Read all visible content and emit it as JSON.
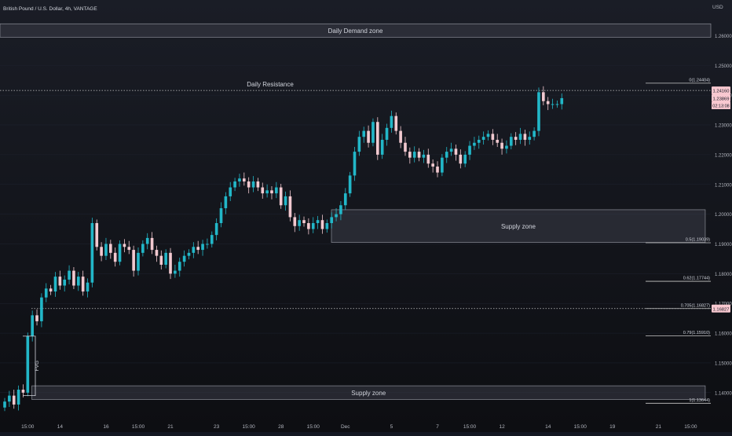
{
  "header": {
    "symbol_title": "British Pound / U.S. Dollar, 4h, VANTAGE"
  },
  "colors": {
    "background": "#131722",
    "up": "#22b7c8",
    "down": "#f2c9d0",
    "grid": "#1f2330",
    "axis_text": "#b2b5be",
    "zone_fill": "#3a3d47",
    "zone_border": "#8a8d96",
    "line": "#c8c8c8",
    "price_label_bg": "#f8c8d0",
    "price_label_text": "#131722"
  },
  "zones": [
    {
      "id": "daily-demand-zone",
      "label": "Daily Demand zone",
      "top": 1.264,
      "bottom": 1.2595,
      "x_start": 0,
      "x_end": 1.0
    },
    {
      "id": "supply-zone-mid",
      "label": "Supply zone",
      "top": 1.2015,
      "bottom": 1.1905,
      "x_start": 0.4663,
      "x_end": 0.9922
    },
    {
      "id": "supply-zone-bottom",
      "label": "Supply zone",
      "top": 1.1423,
      "bottom": 1.1377,
      "x_start": 0.0448,
      "x_end": 0.9922
    }
  ],
  "lines": {
    "daily_resistance": {
      "label": "Daily Resistance",
      "price": 1.2416
    },
    "fvg_level": {
      "price": 1.16827
    }
  },
  "fvg": {
    "label": "FVG",
    "top": 1.159,
    "bottom": 1.139
  },
  "fib_levels": [
    {
      "label": "0(1.24404)",
      "price": 1.24404
    },
    {
      "label": "0.5(1.19039)",
      "price": 1.19039
    },
    {
      "label": "0.62(1.17744)",
      "price": 1.17744
    },
    {
      "label": "0.705(1.16827)",
      "price": 1.16827
    },
    {
      "label": "0.79(1.15910)",
      "price": 1.1591
    },
    {
      "label": "1(1.13644)",
      "price": 1.13644
    }
  ],
  "price_labels": {
    "resistance": "1.24160",
    "current_price": "1.23869",
    "countdown": "02:13:08",
    "fvg_level": "1.16827"
  },
  "chart_data": {
    "type": "candlestick",
    "title": "British Pound / U.S. Dollar, 4h, VANTAGE",
    "currency": "USD",
    "ylim": [
      1.1315,
      1.272
    ],
    "y_ticks": [
      "1.26000",
      "1.25000",
      "1.24000",
      "1.23000",
      "1.22000",
      "1.21000",
      "1.20000",
      "1.19000",
      "1.18000",
      "1.17000",
      "1.16000",
      "1.15000",
      "1.14000"
    ],
    "y_tick_values": [
      1.26,
      1.25,
      1.24,
      1.23,
      1.22,
      1.21,
      1.2,
      1.19,
      1.18,
      1.17,
      1.16,
      1.15,
      1.14
    ],
    "x_ticks": [
      {
        "label": "15:00",
        "bar": 5
      },
      {
        "label": "14",
        "bar": 12
      },
      {
        "label": "16",
        "bar": 22
      },
      {
        "label": "15:00",
        "bar": 29
      },
      {
        "label": "21",
        "bar": 36
      },
      {
        "label": "23",
        "bar": 46
      },
      {
        "label": "15:00",
        "bar": 53
      },
      {
        "label": "28",
        "bar": 60
      },
      {
        "label": "15:00",
        "bar": 67
      },
      {
        "label": "Dec",
        "bar": 74
      },
      {
        "label": "5",
        "bar": 84
      },
      {
        "label": "7",
        "bar": 94
      },
      {
        "label": "15:00",
        "bar": 101
      },
      {
        "label": "12",
        "bar": 108
      },
      {
        "label": "14",
        "bar": 118
      },
      {
        "label": "15:00",
        "bar": 125
      },
      {
        "label": "19",
        "bar": 132
      },
      {
        "label": "21",
        "bar": 142
      },
      {
        "label": "15:00",
        "bar": 149
      }
    ],
    "closes": [
      1.137,
      1.139,
      1.136,
      1.141,
      1.14,
      1.159,
      1.166,
      1.164,
      1.172,
      1.175,
      1.174,
      1.179,
      1.176,
      1.178,
      1.181,
      1.176,
      1.179,
      1.174,
      1.177,
      1.197,
      1.189,
      1.186,
      1.19,
      1.187,
      1.184,
      1.19,
      1.189,
      1.188,
      1.181,
      1.187,
      1.19,
      1.192,
      1.188,
      1.186,
      1.183,
      1.187,
      1.18,
      1.181,
      1.184,
      1.186,
      1.187,
      1.189,
      1.188,
      1.19,
      1.19,
      1.193,
      1.197,
      1.202,
      1.206,
      1.209,
      1.211,
      1.212,
      1.211,
      1.209,
      1.211,
      1.209,
      1.207,
      1.208,
      1.207,
      1.209,
      1.203,
      1.206,
      1.199,
      1.196,
      1.198,
      1.197,
      1.195,
      1.197,
      1.198,
      1.195,
      1.197,
      1.199,
      1.2,
      1.203,
      1.207,
      1.213,
      1.221,
      1.226,
      1.228,
      1.224,
      1.231,
      1.22,
      1.225,
      1.229,
      1.233,
      1.228,
      1.224,
      1.221,
      1.219,
      1.221,
      1.219,
      1.22,
      1.217,
      1.216,
      1.214,
      1.219,
      1.221,
      1.222,
      1.22,
      1.217,
      1.22,
      1.223,
      1.224,
      1.225,
      1.226,
      1.227,
      1.225,
      1.224,
      1.222,
      1.223,
      1.226,
      1.225,
      1.227,
      1.225,
      1.226,
      1.228,
      1.241,
      1.238,
      1.237,
      1.237,
      1.237,
      1.239
    ],
    "x_range_bars": [
      0,
      152
    ]
  }
}
